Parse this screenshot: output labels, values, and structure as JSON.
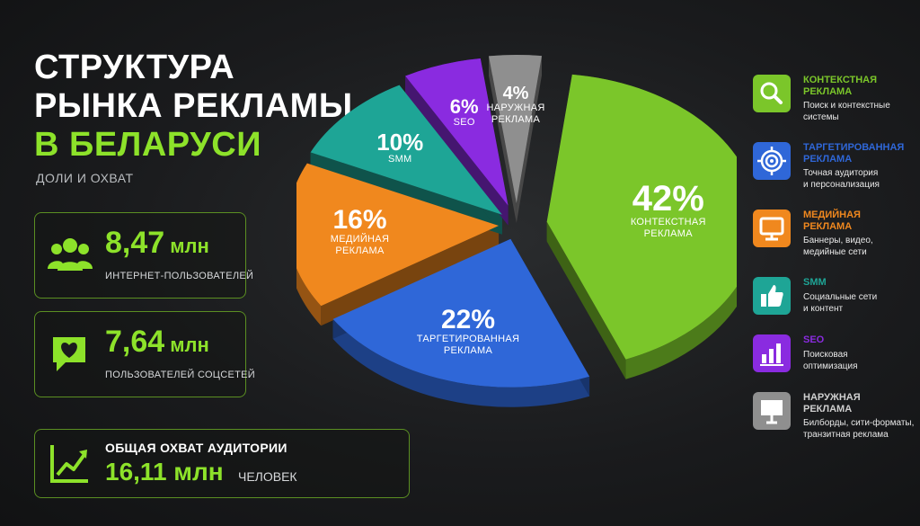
{
  "header": {
    "title_line1": "СТРУКТУРА",
    "title_line2": "РЫНКА РЕКЛАМЫ",
    "title_line3": "В БЕЛАРУСИ",
    "subtitle": "ДОЛИ И ОХВАТ"
  },
  "stats": {
    "internet_users": {
      "value": "8,47",
      "unit": "млн",
      "label": "ИНТЕРНЕТ-ПОЛЬЗОВАТЕЛЕЙ",
      "icon": "users-icon"
    },
    "social_users": {
      "value": "7,64",
      "unit": "млн",
      "label": "ПОЛЬЗОВАТЕЛЕЙ СОЦСЕТЕЙ",
      "icon": "heart-chat-icon"
    },
    "total_reach": {
      "heading": "ОБЩАЯ ОХВАТ АУДИТОРИИ",
      "value": "16,11 млн",
      "unit": "ЧЕЛОВЕК",
      "icon": "growth-chart-icon"
    }
  },
  "chart_data": {
    "type": "pie",
    "slices": [
      {
        "label": "КОНТЕКСТНАЯ РЕКЛАМА",
        "value": 42,
        "pct_text": "42%",
        "color": "#7bc62a"
      },
      {
        "label": "ТАРГЕТИРОВАННАЯ РЕКЛАМА",
        "value": 22,
        "pct_text": "22%",
        "color": "#2f67d8"
      },
      {
        "label": "МЕДИЙНАЯ РЕКЛАМА",
        "value": 16,
        "pct_text": "16%",
        "color": "#f0881e"
      },
      {
        "label": "SMM",
        "value": 10,
        "pct_text": "10%",
        "color": "#1ea596"
      },
      {
        "label": "SEO",
        "value": 6,
        "pct_text": "6%",
        "color": "#8a2be0"
      },
      {
        "label": "НАРУЖНАЯ РЕКЛАМА",
        "value": 4,
        "pct_text": "4%",
        "color": "#8f8f8f"
      }
    ]
  },
  "legend": [
    {
      "title1": "КОНТЕКСТНАЯ",
      "title2": "РЕКЛАМА",
      "desc1": "Поиск и контекстные",
      "desc2": "системы",
      "color": "#7bc62a",
      "icon": "search-icon"
    },
    {
      "title1": "ТАРГЕТИРОВАННАЯ",
      "title2": "РЕКЛАМА",
      "desc1": "Точная аудитория",
      "desc2": "и персонализация",
      "color": "#2f67d8",
      "icon": "target-icon"
    },
    {
      "title1": "МЕДИЙНАЯ",
      "title2": "РЕКЛАМА",
      "desc1": "Баннеры, видео,",
      "desc2": "медийные сети",
      "color": "#f0881e",
      "icon": "monitor-icon"
    },
    {
      "title1": "SMM",
      "title2": "",
      "desc1": "Социальные сети",
      "desc2": "и контент",
      "color": "#1ea596",
      "icon": "thumbs-up-icon"
    },
    {
      "title1": "SEO",
      "title2": "",
      "desc1": "Поисковая",
      "desc2": "оптимизация",
      "color": "#8a2be0",
      "icon": "bar-chart-icon"
    },
    {
      "title1": "НАРУЖНАЯ",
      "title2": "РЕКЛАМА",
      "desc1": "Билборды, сити-форматы,",
      "desc2": "транзитная реклама",
      "color": "#8f8f8f",
      "icon": "billboard-icon"
    }
  ]
}
